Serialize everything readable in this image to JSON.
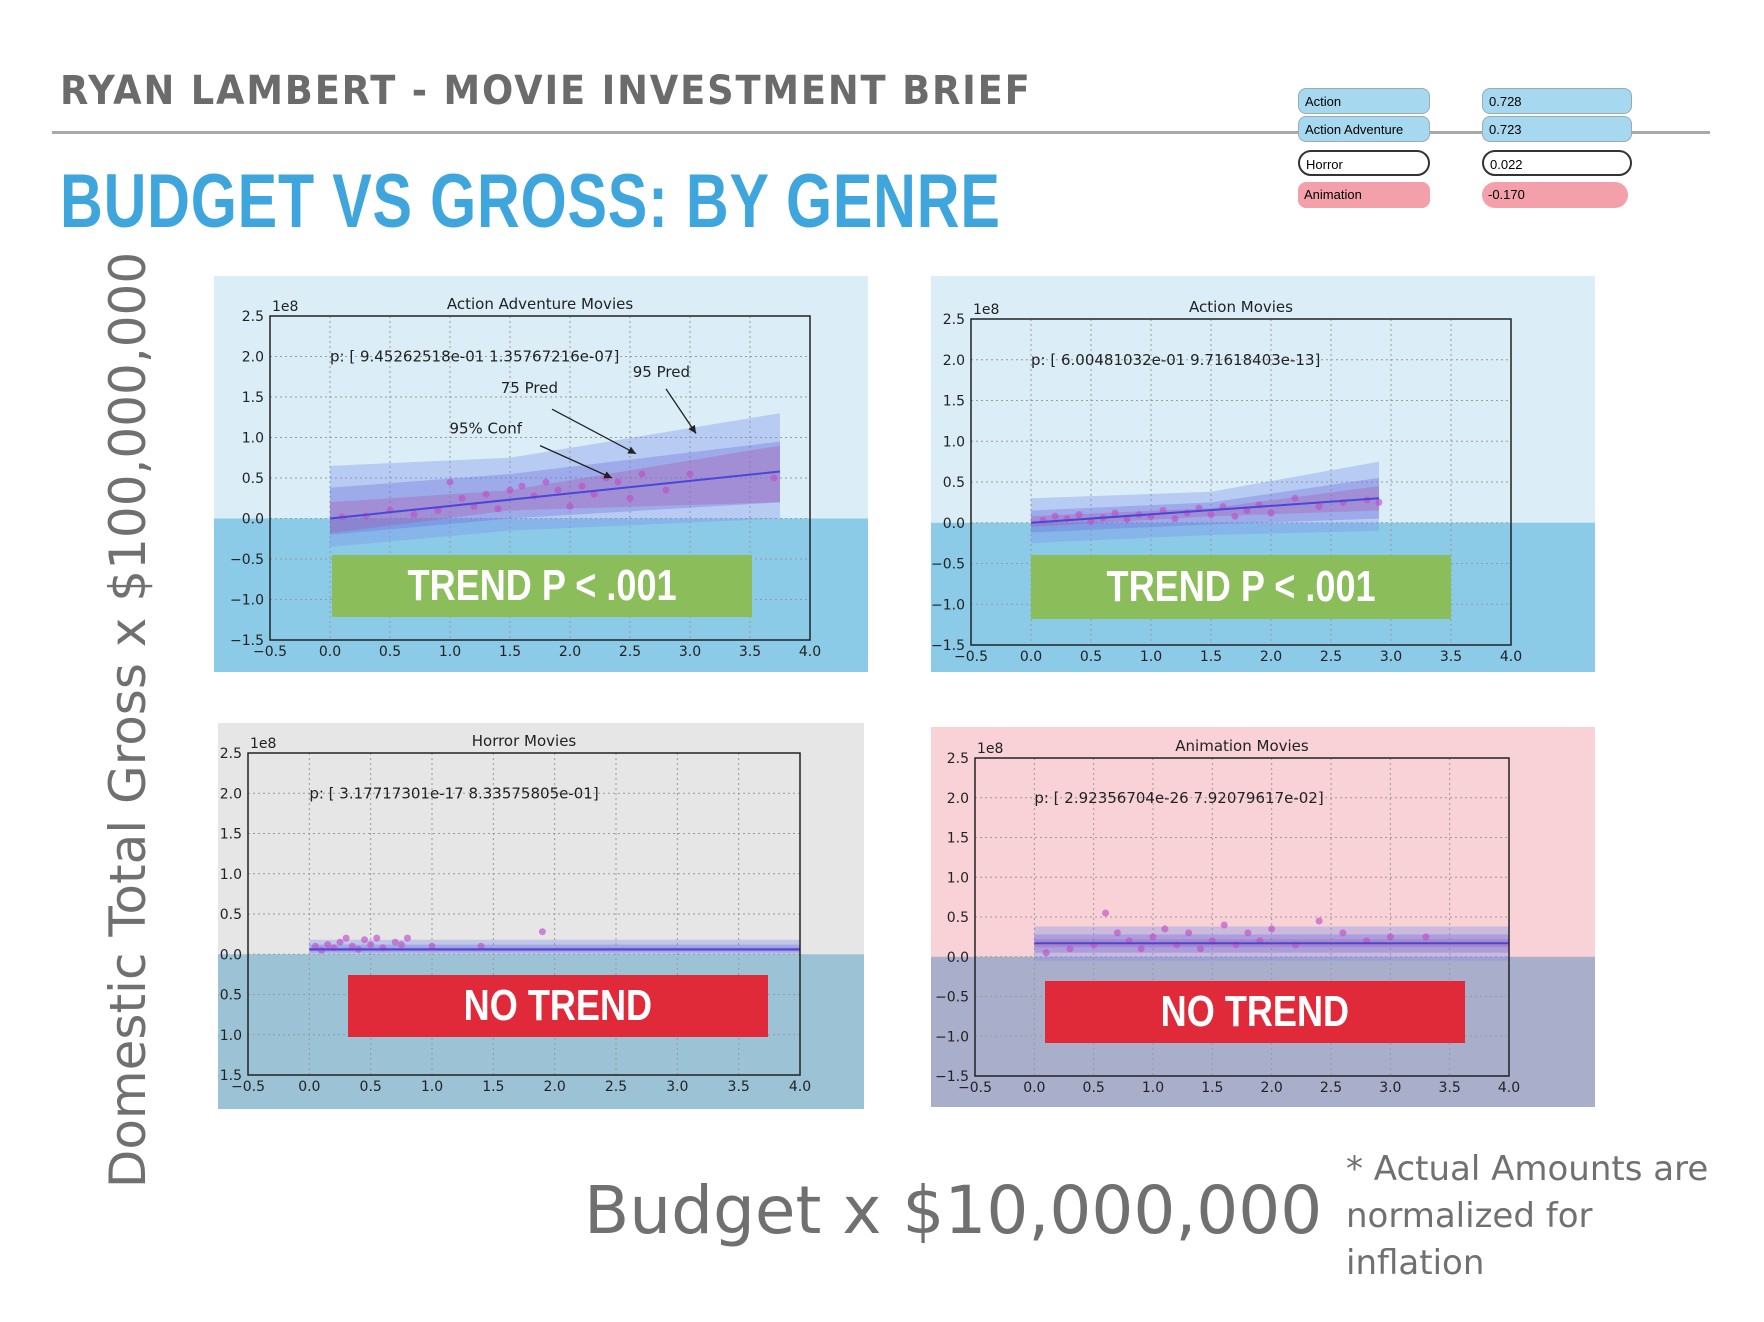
{
  "header": {
    "brief_title": "RYAN LAMBERT - MOVIE INVESTMENT BRIEF",
    "slide_title": "BUDGET VS GROSS: BY GENRE"
  },
  "legend": {
    "genres": [
      {
        "name": "Action",
        "value": "0.728",
        "color": "#a6d8ef"
      },
      {
        "name": "Action Adventure",
        "value": "0.723",
        "color": "#a6d8ef"
      },
      {
        "name": "Horror",
        "value": "0.022",
        "color": "#ffffff"
      },
      {
        "name": "Animation",
        "value": "-0.170",
        "color": "#f3a0ab"
      }
    ]
  },
  "axes": {
    "y_title": "Domestic Total Gross x $100,000,000",
    "x_title": "Budget x $10,000,000"
  },
  "footnote": "* Actual Amounts are normalized for inflation",
  "chart_data": [
    {
      "type": "scatter",
      "title": "Action Adventure Movies",
      "y_offset_text": "1e8",
      "annotation": "p: [  9.45262518e-01   1.35767216e-07]",
      "labels": [
        "95 Pred",
        "75 Pred",
        "95% Conf"
      ],
      "badge": "TREND P < .001",
      "badge_color": "#8bbd5b",
      "panel_color": "#dbeef8",
      "below_zero_color": "#8ccbe8",
      "xlim": [
        -0.5,
        4.0
      ],
      "ylim": [
        -1.5,
        2.5
      ],
      "x_ticks": [
        "−0.5",
        "0.0",
        "0.5",
        "1.0",
        "1.5",
        "2.0",
        "2.5",
        "3.0",
        "3.5",
        "4.0"
      ],
      "y_ticks": [
        "2.5",
        "2.0",
        "1.5",
        "1.0",
        "0.5",
        "0.0",
        "−0.5",
        "−1.0",
        "−1.5"
      ],
      "x": [
        0.1,
        0.3,
        0.5,
        0.7,
        0.9,
        1.0,
        1.1,
        1.2,
        1.3,
        1.4,
        1.5,
        1.6,
        1.7,
        1.8,
        1.9,
        2.0,
        2.1,
        2.2,
        2.3,
        2.4,
        2.5,
        2.6,
        2.8,
        3.0,
        3.7
      ],
      "y": [
        0.02,
        0.03,
        0.1,
        0.05,
        0.1,
        0.45,
        0.25,
        0.15,
        0.3,
        0.12,
        0.35,
        0.4,
        0.28,
        0.45,
        0.35,
        0.15,
        0.4,
        0.3,
        0.5,
        0.45,
        0.25,
        0.55,
        0.35,
        0.55,
        0.5
      ],
      "fit": [
        [
          0.0,
          0.0
        ],
        [
          3.75,
          0.58
        ]
      ],
      "band_95_pred": [
        [
          0.0,
          -0.35,
          0.65
        ],
        [
          1.5,
          -0.15,
          0.75
        ],
        [
          3.75,
          0.0,
          1.3
        ]
      ],
      "band_75_pred": [
        [
          0.0,
          -0.2,
          0.38
        ],
        [
          1.5,
          0.0,
          0.55
        ],
        [
          3.75,
          0.2,
          0.95
        ]
      ],
      "band_conf": [
        [
          0.0,
          -0.18,
          0.2
        ],
        [
          1.5,
          0.1,
          0.35
        ],
        [
          3.75,
          0.2,
          0.9
        ]
      ]
    },
    {
      "type": "scatter",
      "title": "Action Movies",
      "y_offset_text": "1e8",
      "annotation": "p: [  6.00481032e-01   9.71618403e-13]",
      "badge": "TREND P < .001",
      "badge_color": "#8bbd5b",
      "panel_color": "#dbeef8",
      "below_zero_color": "#8ccbe8",
      "xlim": [
        -0.5,
        4.0
      ],
      "ylim": [
        -1.5,
        2.5
      ],
      "x_ticks": [
        "−0.5",
        "0.0",
        "0.5",
        "1.0",
        "1.5",
        "2.0",
        "2.5",
        "3.0",
        "3.5",
        "4.0"
      ],
      "y_ticks": [
        "2.5",
        "2.0",
        "1.5",
        "1.0",
        "0.5",
        "0.0",
        "−0.5",
        "−1.0",
        "−1.5"
      ],
      "x": [
        0.1,
        0.2,
        0.3,
        0.4,
        0.5,
        0.6,
        0.7,
        0.8,
        0.9,
        1.0,
        1.1,
        1.2,
        1.3,
        1.4,
        1.5,
        1.6,
        1.7,
        1.8,
        1.9,
        2.0,
        2.2,
        2.4,
        2.6,
        2.8,
        2.9
      ],
      "y": [
        0.03,
        0.08,
        0.05,
        0.1,
        0.02,
        0.06,
        0.12,
        0.04,
        0.1,
        0.08,
        0.15,
        0.05,
        0.12,
        0.18,
        0.1,
        0.2,
        0.08,
        0.15,
        0.22,
        0.12,
        0.3,
        0.2,
        0.25,
        0.28,
        0.25
      ],
      "fit": [
        [
          0.0,
          0.0
        ],
        [
          2.9,
          0.3
        ]
      ],
      "band_95_pred": [
        [
          0.0,
          -0.25,
          0.3
        ],
        [
          1.5,
          -0.15,
          0.38
        ],
        [
          2.9,
          -0.1,
          0.75
        ]
      ],
      "band_75_pred": [
        [
          0.0,
          -0.12,
          0.15
        ],
        [
          1.5,
          -0.02,
          0.25
        ],
        [
          2.9,
          0.05,
          0.55
        ]
      ],
      "band_conf": [
        [
          0.0,
          -0.05,
          0.08
        ],
        [
          1.5,
          0.08,
          0.18
        ],
        [
          2.9,
          0.15,
          0.45
        ]
      ]
    },
    {
      "type": "scatter",
      "title": "Horror Movies",
      "y_offset_text": "1e8",
      "annotation": "p: [  3.17717301e-17   8.33575805e-01]",
      "badge": "NO TREND",
      "badge_color": "#e02a3a",
      "panel_color": "#e6e6e6",
      "below_zero_color": "#9cc3d5",
      "xlim": [
        -0.5,
        4.0
      ],
      "ylim": [
        -1.5,
        2.5
      ],
      "x_ticks": [
        "−0.5",
        "0.0",
        "0.5",
        "1.0",
        "1.5",
        "2.0",
        "2.5",
        "3.0",
        "3.5",
        "4.0"
      ],
      "y_ticks": [
        "2.5",
        "2.0",
        "1.5",
        "1.0",
        "0.5",
        "0.0",
        "−0.5",
        "−1.0",
        "−1.5"
      ],
      "x": [
        0.05,
        0.1,
        0.15,
        0.2,
        0.25,
        0.3,
        0.35,
        0.4,
        0.45,
        0.5,
        0.55,
        0.6,
        0.7,
        0.75,
        0.8,
        1.0,
        1.4,
        1.9
      ],
      "y": [
        0.1,
        0.05,
        0.12,
        0.08,
        0.15,
        0.2,
        0.1,
        0.06,
        0.18,
        0.12,
        0.2,
        0.08,
        0.15,
        0.12,
        0.2,
        0.1,
        0.1,
        0.28
      ],
      "fit": [
        [
          0.0,
          0.06
        ],
        [
          4.0,
          0.06
        ]
      ],
      "band_95_pred": [
        [
          0.0,
          0.0,
          0.18
        ],
        [
          4.0,
          0.0,
          0.18
        ]
      ],
      "band_75_pred": [
        [
          0.0,
          0.02,
          0.12
        ],
        [
          4.0,
          0.02,
          0.12
        ]
      ],
      "band_conf": [
        [
          0.0,
          0.04,
          0.08
        ],
        [
          4.0,
          0.04,
          0.08
        ]
      ]
    },
    {
      "type": "scatter",
      "title": "Animation Movies",
      "y_offset_text": "1e8",
      "annotation": "p: [  2.92356704e-26   7.92079617e-02]",
      "badge": "NO TREND",
      "badge_color": "#e02a3a",
      "panel_color": "#f9d2d8",
      "below_zero_color": "#a9aecb",
      "xlim": [
        -0.5,
        4.0
      ],
      "ylim": [
        -1.5,
        2.5
      ],
      "x_ticks": [
        "−0.5",
        "0.0",
        "0.5",
        "1.0",
        "1.5",
        "2.0",
        "2.5",
        "3.0",
        "3.5",
        "4.0"
      ],
      "y_ticks": [
        "2.5",
        "2.0",
        "1.5",
        "1.0",
        "0.5",
        "0.0",
        "−0.5",
        "−1.0",
        "−1.5"
      ],
      "x": [
        0.1,
        0.3,
        0.5,
        0.6,
        0.7,
        0.8,
        0.9,
        1.0,
        1.1,
        1.2,
        1.3,
        1.4,
        1.5,
        1.6,
        1.7,
        1.8,
        1.9,
        2.0,
        2.2,
        2.4,
        2.6,
        2.8,
        3.0,
        3.3
      ],
      "y": [
        0.05,
        0.1,
        0.15,
        0.55,
        0.3,
        0.2,
        0.1,
        0.25,
        0.35,
        0.15,
        0.3,
        0.1,
        0.2,
        0.4,
        0.15,
        0.3,
        0.2,
        0.35,
        0.15,
        0.45,
        0.3,
        0.2,
        0.25,
        0.25
      ],
      "fit": [
        [
          0.0,
          0.17
        ],
        [
          4.0,
          0.17
        ]
      ],
      "band_95_pred": [
        [
          0.0,
          -0.05,
          0.38
        ],
        [
          4.0,
          -0.05,
          0.38
        ]
      ],
      "band_75_pred": [
        [
          0.0,
          0.05,
          0.28
        ],
        [
          4.0,
          0.05,
          0.28
        ]
      ],
      "band_conf": [
        [
          0.0,
          0.12,
          0.22
        ],
        [
          4.0,
          0.12,
          0.22
        ]
      ]
    }
  ]
}
